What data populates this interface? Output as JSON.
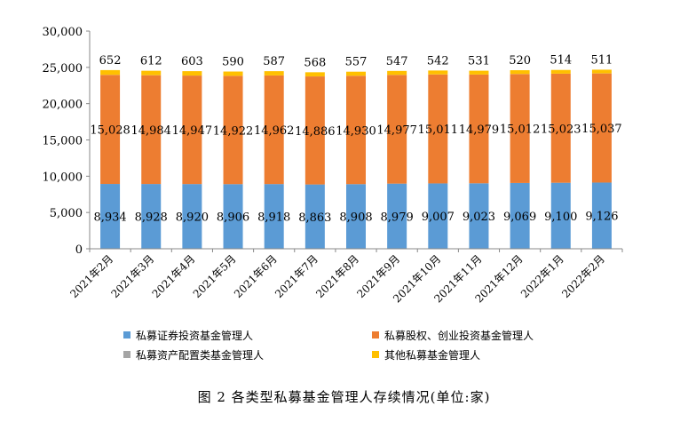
{
  "chart_data": {
    "type": "bar",
    "stacked": true,
    "categories": [
      "2021年2月",
      "2021年3月",
      "2021年4月",
      "2021年5月",
      "2021年6月",
      "2021年7月",
      "2021年8月",
      "2021年9月",
      "2021年10月",
      "2021年11月",
      "2021年12月",
      "2022年1月",
      "2022年2月"
    ],
    "series": [
      {
        "name": "私募证券投资基金管理人",
        "color": "#5b9bd5",
        "values": [
          8934,
          8928,
          8920,
          8906,
          8918,
          8863,
          8908,
          8979,
          9007,
          9023,
          9069,
          9100,
          9126
        ],
        "labels": [
          "8,934",
          "8,928",
          "8,920",
          "8,906",
          "8,918",
          "8,863",
          "8,908",
          "8,979",
          "9,007",
          "9,023",
          "9,069",
          "9,100",
          "9,126"
        ]
      },
      {
        "name": "私募股权、创业投资基金管理人",
        "color": "#ed7d31",
        "values": [
          15028,
          14984,
          14947,
          14922,
          14962,
          14886,
          14930,
          14977,
          15011,
          14979,
          15012,
          15023,
          15037
        ],
        "labels": [
          "15,028",
          "14,984",
          "14,947",
          "14,922",
          "14,962",
          "14,886",
          "14,930",
          "14,977",
          "15,011",
          "14,979",
          "15,012",
          "15,023",
          "15,037"
        ]
      },
      {
        "name": "私募资产配置类基金管理人",
        "color": "#a5a5a5",
        "values": [
          9,
          9,
          9,
          9,
          9,
          9,
          9,
          9,
          9,
          9,
          9,
          9,
          9
        ],
        "labels": []
      },
      {
        "name": "其他私募基金管理人",
        "color": "#ffc000",
        "values": [
          652,
          612,
          603,
          590,
          587,
          568,
          557,
          547,
          542,
          531,
          520,
          514,
          511
        ],
        "labels": [
          "652",
          "612",
          "603",
          "590",
          "587",
          "568",
          "557",
          "547",
          "542",
          "531",
          "520",
          "514",
          "511"
        ]
      }
    ],
    "ylim": [
      0,
      30000
    ],
    "yticks": [
      "0",
      "5,000",
      "10,000",
      "15,000",
      "20,000",
      "25,000",
      "30,000"
    ],
    "grid": false,
    "legend": "bottom",
    "caption": "图 2  各类型私募基金管理人存续情况(单位:家)"
  }
}
